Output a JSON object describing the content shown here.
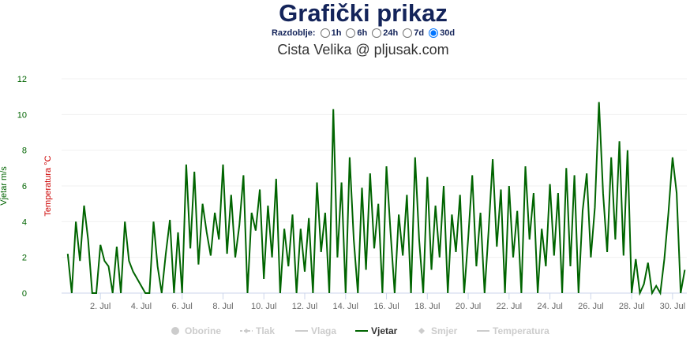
{
  "period": {
    "label": "Razdoblje:",
    "options": [
      "1h",
      "6h",
      "24h",
      "7d",
      "30d"
    ],
    "selected": "30d"
  },
  "chart_data": {
    "type": "line",
    "title": "Grafički prikaz",
    "subtitle": "Cista Velika @ pljusak.com",
    "ylabel": "Vjetar m/s",
    "ylabel_color": "#006400",
    "y2label": "Temperatura °C",
    "y2label_color": "#cc0000",
    "xlim": [
      0.1,
      30.7
    ],
    "ylim": [
      0,
      12
    ],
    "yticks": [
      0,
      2,
      4,
      6,
      8,
      10,
      12
    ],
    "grid": true,
    "xticks": [
      {
        "value": 2,
        "label": "2. Jul"
      },
      {
        "value": 4,
        "label": "4. Jul"
      },
      {
        "value": 6,
        "label": "6. Jul"
      },
      {
        "value": 8,
        "label": "8. Jul"
      },
      {
        "value": 10,
        "label": "10. Jul"
      },
      {
        "value": 12,
        "label": "12. Jul"
      },
      {
        "value": 14,
        "label": "14. Jul"
      },
      {
        "value": 16,
        "label": "16. Jul"
      },
      {
        "value": 18,
        "label": "18. Jul"
      },
      {
        "value": 20,
        "label": "20. Jul"
      },
      {
        "value": 22,
        "label": "22. Jul"
      },
      {
        "value": 24,
        "label": "24. Jul"
      },
      {
        "value": 26,
        "label": "26. Jul"
      },
      {
        "value": 28,
        "label": "28. Jul"
      },
      {
        "value": 30,
        "label": "30. Jul"
      }
    ],
    "x": [
      0.4,
      0.6,
      0.8,
      1.0,
      1.2,
      1.4,
      1.6,
      1.8,
      2.0,
      2.2,
      2.4,
      2.6,
      2.8,
      3.0,
      3.2,
      3.4,
      3.6,
      3.8,
      4.0,
      4.2,
      4.4,
      4.6,
      4.8,
      5.0,
      5.2,
      5.4,
      5.6,
      5.8,
      6.0,
      6.2,
      6.4,
      6.6,
      6.8,
      7.0,
      7.2,
      7.4,
      7.6,
      7.8,
      8.0,
      8.2,
      8.4,
      8.6,
      8.8,
      9.0,
      9.2,
      9.4,
      9.6,
      9.8,
      10.0,
      10.2,
      10.4,
      10.6,
      10.8,
      11.0,
      11.2,
      11.4,
      11.6,
      11.8,
      12.0,
      12.2,
      12.4,
      12.6,
      12.8,
      13.0,
      13.2,
      13.4,
      13.6,
      13.8,
      14.0,
      14.2,
      14.4,
      14.6,
      14.8,
      15.0,
      15.2,
      15.4,
      15.6,
      15.8,
      16.0,
      16.2,
      16.4,
      16.6,
      16.8,
      17.0,
      17.2,
      17.4,
      17.6,
      17.8,
      18.0,
      18.2,
      18.4,
      18.6,
      18.8,
      19.0,
      19.2,
      19.4,
      19.6,
      19.8,
      20.0,
      20.2,
      20.4,
      20.6,
      20.8,
      21.0,
      21.2,
      21.4,
      21.6,
      21.8,
      22.0,
      22.2,
      22.4,
      22.6,
      22.8,
      23.0,
      23.2,
      23.4,
      23.6,
      23.8,
      24.0,
      24.2,
      24.4,
      24.6,
      24.8,
      25.0,
      25.2,
      25.4,
      25.6,
      25.8,
      26.0,
      26.2,
      26.4,
      26.6,
      26.8,
      27.0,
      27.2,
      27.4,
      27.6,
      27.8,
      28.0,
      28.2,
      28.4,
      28.6,
      28.8,
      29.0,
      29.2,
      29.4,
      29.6,
      29.8,
      30.0,
      30.2,
      30.4,
      30.6
    ],
    "series": [
      {
        "name": "Vjetar",
        "color": "#006400",
        "values": [
          2.2,
          0,
          4,
          1.8,
          4.9,
          3,
          0,
          0,
          2.7,
          1.8,
          1.5,
          0,
          2.6,
          0,
          4,
          1.8,
          1.2,
          0.8,
          0.4,
          0,
          0,
          4,
          1.5,
          0,
          2.2,
          4.1,
          0,
          3.4,
          0,
          7.2,
          2.5,
          6.8,
          1.6,
          5,
          3.4,
          2.1,
          4.5,
          3,
          7.2,
          2.2,
          5.5,
          2,
          3.8,
          6.6,
          0,
          4.5,
          3.5,
          5.8,
          0.8,
          4.9,
          2,
          6.4,
          0,
          3.6,
          1.5,
          4.4,
          0,
          3.6,
          1.2,
          4.2,
          0,
          6.2,
          2.3,
          4.5,
          0,
          10.3,
          2,
          6.2,
          0,
          7.6,
          3,
          0,
          5.9,
          1.3,
          6.7,
          2.5,
          5,
          0,
          7.1,
          3.4,
          0,
          4.4,
          2.1,
          5.5,
          0,
          7.6,
          3,
          0,
          6.5,
          1.3,
          4.9,
          2,
          6,
          0,
          4.4,
          2.3,
          5.5,
          0,
          3.1,
          6.6,
          1.5,
          4.5,
          0,
          3.5,
          7.5,
          2.6,
          5.8,
          0,
          6,
          2,
          4.6,
          0,
          7.1,
          3,
          5.6,
          0,
          3.6,
          1.5,
          6.1,
          2.1,
          5.6,
          0,
          7,
          1.5,
          6.6,
          0,
          4.6,
          6.7,
          2,
          4.8,
          10.7,
          5.6,
          2.3,
          7.6,
          3,
          8.5,
          2.1,
          8,
          0,
          1.9,
          0,
          0.5,
          1.7,
          0,
          0.4,
          0,
          1.9,
          4.5,
          7.6,
          5.6,
          0,
          1.3
        ]
      }
    ],
    "legend": [
      "Oborine",
      "Tlak",
      "Vlaga",
      "Vjetar",
      "Smjer",
      "Temperatura"
    ],
    "legend_active": "Vjetar"
  }
}
